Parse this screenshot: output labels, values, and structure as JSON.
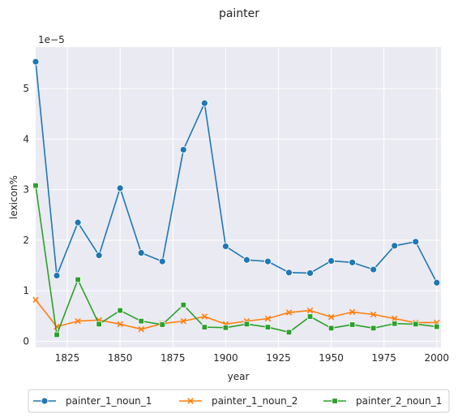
{
  "chart_data": {
    "type": "line",
    "title": "painter",
    "xlabel": "year",
    "ylabel": "lexicon%",
    "scale_label": "1e−5",
    "xlim": [
      1810,
      2002
    ],
    "ylim": [
      -0.12,
      5.82
    ],
    "xticks": [
      1825,
      1850,
      1875,
      1900,
      1925,
      1950,
      1975,
      2000
    ],
    "yticks": [
      0,
      1,
      2,
      3,
      4,
      5
    ],
    "grid": true,
    "legend_position": "bottom-center",
    "x": [
      1810,
      1820,
      1830,
      1840,
      1850,
      1860,
      1870,
      1880,
      1890,
      1900,
      1910,
      1920,
      1930,
      1940,
      1950,
      1960,
      1970,
      1980,
      1990,
      2000
    ],
    "series": [
      {
        "name": "painter_1_noun_1",
        "color": "#1f77b4",
        "marker": "circle",
        "values": [
          5.53,
          1.3,
          2.35,
          1.7,
          3.03,
          1.75,
          1.58,
          3.79,
          4.71,
          1.88,
          1.61,
          1.58,
          1.36,
          1.35,
          1.59,
          1.56,
          1.42,
          1.89,
          1.97,
          1.16
        ]
      },
      {
        "name": "painter_1_noun_2",
        "color": "#ff7f0e",
        "marker": "x",
        "values": [
          0.82,
          0.29,
          0.4,
          0.42,
          0.34,
          0.24,
          0.35,
          0.4,
          0.49,
          0.34,
          0.4,
          0.45,
          0.57,
          0.61,
          0.48,
          0.58,
          0.53,
          0.45,
          0.37,
          0.37
        ]
      },
      {
        "name": "painter_2_noun_1",
        "color": "#2ca02c",
        "marker": "square",
        "values": [
          3.08,
          0.13,
          1.22,
          0.34,
          0.61,
          0.4,
          0.33,
          0.72,
          0.28,
          0.27,
          0.34,
          0.28,
          0.18,
          0.49,
          0.26,
          0.33,
          0.26,
          0.35,
          0.34,
          0.29
        ]
      }
    ]
  }
}
